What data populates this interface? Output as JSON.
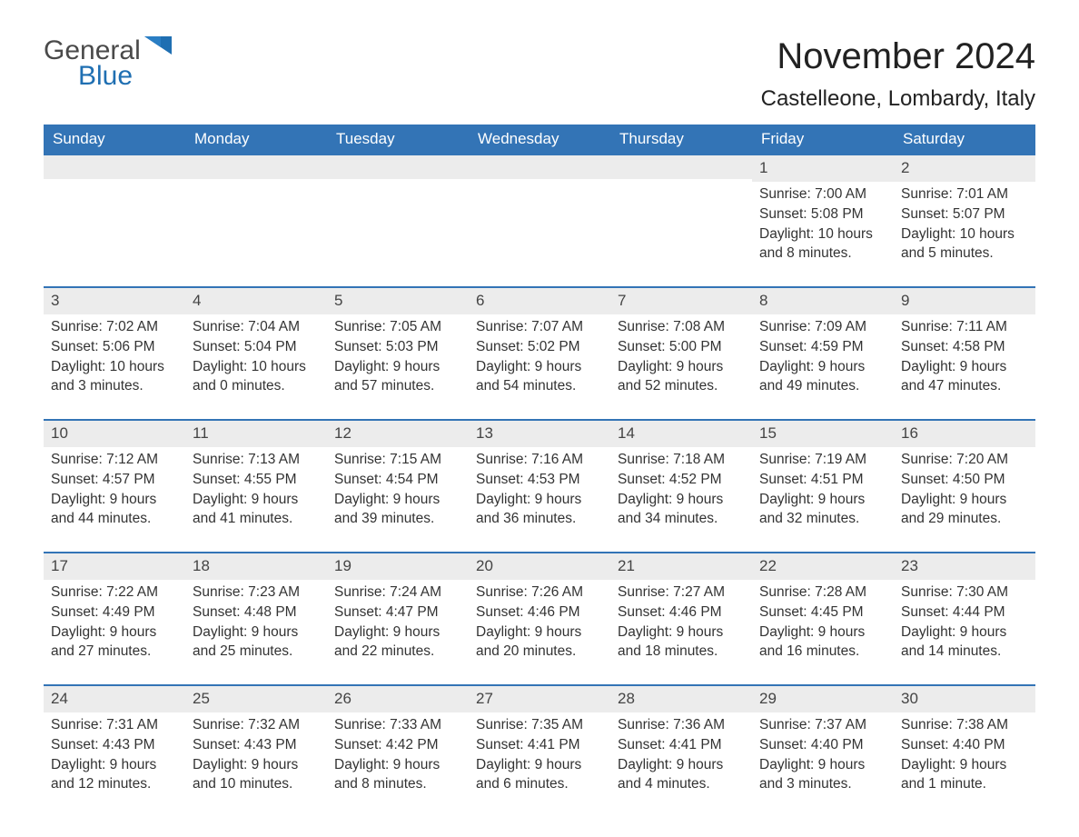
{
  "logo": {
    "general": "General",
    "blue": "Blue",
    "flag_color": "#1f6fb2"
  },
  "title": "November 2024",
  "location": "Castelleone, Lombardy, Italy",
  "colors": {
    "header_bg": "#3374b6",
    "header_text": "#ffffff",
    "row_divider": "#3374b6",
    "daynum_bg": "#ececec",
    "body_text": "#333333",
    "page_bg": "#ffffff"
  },
  "typography": {
    "title_fontsize": 40,
    "location_fontsize": 24,
    "header_fontsize": 17,
    "daynum_fontsize": 17,
    "body_fontsize": 15.5,
    "logo_fontsize": 30
  },
  "weekdays": [
    "Sunday",
    "Monday",
    "Tuesday",
    "Wednesday",
    "Thursday",
    "Friday",
    "Saturday"
  ],
  "labels": {
    "sunrise": "Sunrise:",
    "sunset": "Sunset:",
    "daylight": "Daylight:"
  },
  "weeks": [
    [
      null,
      null,
      null,
      null,
      null,
      {
        "n": "1",
        "sunrise": "7:00 AM",
        "sunset": "5:08 PM",
        "daylight": "10 hours and 8 minutes."
      },
      {
        "n": "2",
        "sunrise": "7:01 AM",
        "sunset": "5:07 PM",
        "daylight": "10 hours and 5 minutes."
      }
    ],
    [
      {
        "n": "3",
        "sunrise": "7:02 AM",
        "sunset": "5:06 PM",
        "daylight": "10 hours and 3 minutes."
      },
      {
        "n": "4",
        "sunrise": "7:04 AM",
        "sunset": "5:04 PM",
        "daylight": "10 hours and 0 minutes."
      },
      {
        "n": "5",
        "sunrise": "7:05 AM",
        "sunset": "5:03 PM",
        "daylight": "9 hours and 57 minutes."
      },
      {
        "n": "6",
        "sunrise": "7:07 AM",
        "sunset": "5:02 PM",
        "daylight": "9 hours and 54 minutes."
      },
      {
        "n": "7",
        "sunrise": "7:08 AM",
        "sunset": "5:00 PM",
        "daylight": "9 hours and 52 minutes."
      },
      {
        "n": "8",
        "sunrise": "7:09 AM",
        "sunset": "4:59 PM",
        "daylight": "9 hours and 49 minutes."
      },
      {
        "n": "9",
        "sunrise": "7:11 AM",
        "sunset": "4:58 PM",
        "daylight": "9 hours and 47 minutes."
      }
    ],
    [
      {
        "n": "10",
        "sunrise": "7:12 AM",
        "sunset": "4:57 PM",
        "daylight": "9 hours and 44 minutes."
      },
      {
        "n": "11",
        "sunrise": "7:13 AM",
        "sunset": "4:55 PM",
        "daylight": "9 hours and 41 minutes."
      },
      {
        "n": "12",
        "sunrise": "7:15 AM",
        "sunset": "4:54 PM",
        "daylight": "9 hours and 39 minutes."
      },
      {
        "n": "13",
        "sunrise": "7:16 AM",
        "sunset": "4:53 PM",
        "daylight": "9 hours and 36 minutes."
      },
      {
        "n": "14",
        "sunrise": "7:18 AM",
        "sunset": "4:52 PM",
        "daylight": "9 hours and 34 minutes."
      },
      {
        "n": "15",
        "sunrise": "7:19 AM",
        "sunset": "4:51 PM",
        "daylight": "9 hours and 32 minutes."
      },
      {
        "n": "16",
        "sunrise": "7:20 AM",
        "sunset": "4:50 PM",
        "daylight": "9 hours and 29 minutes."
      }
    ],
    [
      {
        "n": "17",
        "sunrise": "7:22 AM",
        "sunset": "4:49 PM",
        "daylight": "9 hours and 27 minutes."
      },
      {
        "n": "18",
        "sunrise": "7:23 AM",
        "sunset": "4:48 PM",
        "daylight": "9 hours and 25 minutes."
      },
      {
        "n": "19",
        "sunrise": "7:24 AM",
        "sunset": "4:47 PM",
        "daylight": "9 hours and 22 minutes."
      },
      {
        "n": "20",
        "sunrise": "7:26 AM",
        "sunset": "4:46 PM",
        "daylight": "9 hours and 20 minutes."
      },
      {
        "n": "21",
        "sunrise": "7:27 AM",
        "sunset": "4:46 PM",
        "daylight": "9 hours and 18 minutes."
      },
      {
        "n": "22",
        "sunrise": "7:28 AM",
        "sunset": "4:45 PM",
        "daylight": "9 hours and 16 minutes."
      },
      {
        "n": "23",
        "sunrise": "7:30 AM",
        "sunset": "4:44 PM",
        "daylight": "9 hours and 14 minutes."
      }
    ],
    [
      {
        "n": "24",
        "sunrise": "7:31 AM",
        "sunset": "4:43 PM",
        "daylight": "9 hours and 12 minutes."
      },
      {
        "n": "25",
        "sunrise": "7:32 AM",
        "sunset": "4:43 PM",
        "daylight": "9 hours and 10 minutes."
      },
      {
        "n": "26",
        "sunrise": "7:33 AM",
        "sunset": "4:42 PM",
        "daylight": "9 hours and 8 minutes."
      },
      {
        "n": "27",
        "sunrise": "7:35 AM",
        "sunset": "4:41 PM",
        "daylight": "9 hours and 6 minutes."
      },
      {
        "n": "28",
        "sunrise": "7:36 AM",
        "sunset": "4:41 PM",
        "daylight": "9 hours and 4 minutes."
      },
      {
        "n": "29",
        "sunrise": "7:37 AM",
        "sunset": "4:40 PM",
        "daylight": "9 hours and 3 minutes."
      },
      {
        "n": "30",
        "sunrise": "7:38 AM",
        "sunset": "4:40 PM",
        "daylight": "9 hours and 1 minute."
      }
    ]
  ]
}
